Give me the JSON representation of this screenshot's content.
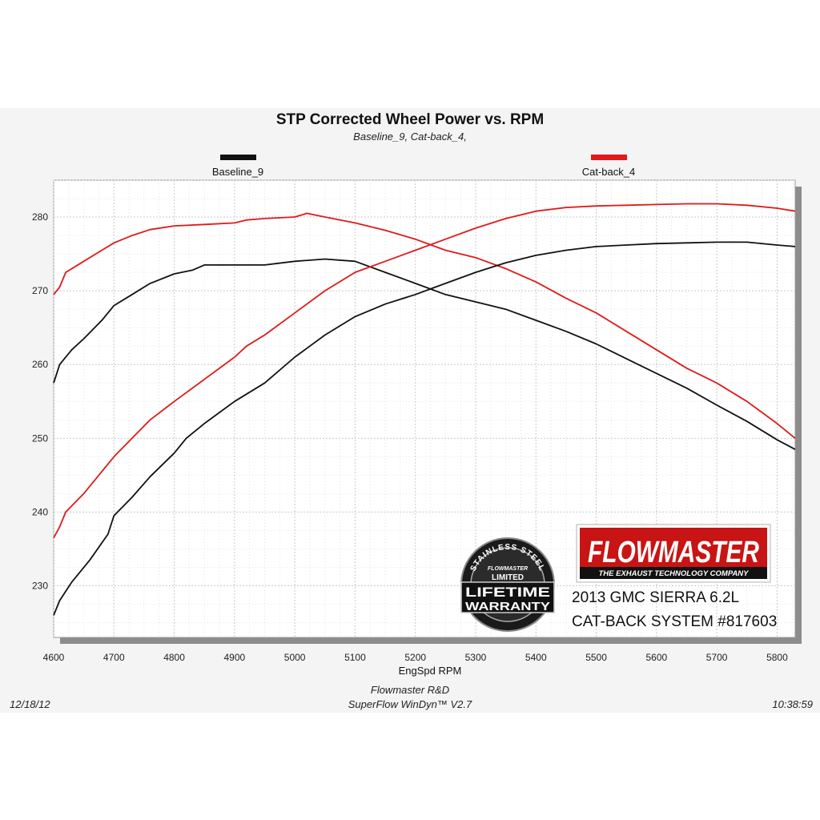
{
  "chart_data": {
    "type": "line",
    "title": "STP Corrected Wheel Power vs. RPM",
    "subtitle": "Baseline_9, Cat-back_4,",
    "xlabel": "EngSpd  RPM",
    "ylabel": "",
    "xlim": [
      4600,
      5830
    ],
    "ylim": [
      223,
      285
    ],
    "x_ticks": [
      4600,
      4700,
      4800,
      4900,
      5000,
      5100,
      5200,
      5300,
      5400,
      5500,
      5600,
      5700,
      5800
    ],
    "y_ticks": [
      230,
      240,
      250,
      260,
      270,
      280
    ],
    "grid": true,
    "legend": [
      {
        "name": "Baseline_9",
        "color": "#111111",
        "placement": "top-left"
      },
      {
        "name": "Cat-back_4",
        "color": "#e01919",
        "placement": "top-right"
      }
    ],
    "series": [
      {
        "name": "Baseline_9",
        "metric": "power",
        "color": "#111111",
        "x": [
          4600,
          4610,
          4630,
          4650,
          4680,
          4700,
          4730,
          4760,
          4800,
          4830,
          4850,
          4900,
          4950,
          5000,
          5050,
          5100,
          5150,
          5200,
          5250,
          5300,
          5350,
          5400,
          5450,
          5500,
          5550,
          5600,
          5650,
          5700,
          5750,
          5800,
          5830
        ],
        "y": [
          257.5,
          260.0,
          262.0,
          263.5,
          266.0,
          268.0,
          269.5,
          271.0,
          272.3,
          272.8,
          273.5,
          273.5,
          273.5,
          274.0,
          274.3,
          274.0,
          272.5,
          271.0,
          269.5,
          268.5,
          267.5,
          266.0,
          264.5,
          262.8,
          260.8,
          258.8,
          256.8,
          254.5,
          252.3,
          249.8,
          248.5
        ]
      },
      {
        "name": "Cat-back_4",
        "metric": "power",
        "color": "#e01919",
        "x": [
          4600,
          4610,
          4620,
          4650,
          4680,
          4700,
          4730,
          4760,
          4800,
          4850,
          4900,
          4920,
          4950,
          5000,
          5020,
          5050,
          5100,
          5150,
          5200,
          5250,
          5300,
          5350,
          5400,
          5450,
          5500,
          5550,
          5600,
          5650,
          5700,
          5750,
          5800,
          5830
        ],
        "y": [
          269.5,
          270.5,
          272.5,
          274.0,
          275.5,
          276.5,
          277.5,
          278.3,
          278.8,
          279.0,
          279.2,
          279.6,
          279.8,
          280.0,
          280.5,
          280.0,
          279.2,
          278.2,
          277.0,
          275.5,
          274.5,
          273.0,
          271.2,
          269.0,
          267.0,
          264.5,
          262.0,
          259.5,
          257.5,
          255.0,
          252.0,
          250.0
        ]
      },
      {
        "name": "Baseline_9",
        "metric": "torque",
        "color": "#111111",
        "x": [
          4600,
          4610,
          4630,
          4660,
          4690,
          4700,
          4730,
          4760,
          4800,
          4820,
          4850,
          4900,
          4950,
          5000,
          5050,
          5100,
          5150,
          5200,
          5250,
          5300,
          5350,
          5400,
          5450,
          5500,
          5550,
          5600,
          5650,
          5700,
          5750,
          5800,
          5830
        ],
        "y": [
          226.0,
          228.0,
          230.5,
          233.5,
          237.0,
          239.5,
          242.0,
          244.8,
          248.0,
          250.0,
          252.0,
          255.0,
          257.5,
          261.0,
          264.0,
          266.5,
          268.2,
          269.5,
          271.0,
          272.5,
          273.8,
          274.8,
          275.5,
          276.0,
          276.2,
          276.4,
          276.5,
          276.6,
          276.6,
          276.2,
          276.0
        ]
      },
      {
        "name": "Cat-back_4",
        "metric": "torque",
        "color": "#e01919",
        "x": [
          4600,
          4610,
          4620,
          4650,
          4680,
          4700,
          4730,
          4760,
          4800,
          4850,
          4900,
          4920,
          4950,
          5000,
          5050,
          5100,
          5150,
          5200,
          5250,
          5300,
          5350,
          5400,
          5450,
          5500,
          5550,
          5600,
          5650,
          5700,
          5750,
          5800,
          5830
        ],
        "y": [
          236.5,
          238.0,
          240.0,
          242.5,
          245.5,
          247.5,
          250.0,
          252.5,
          255.0,
          258.0,
          261.0,
          262.5,
          264.0,
          267.0,
          270.0,
          272.5,
          274.0,
          275.5,
          277.0,
          278.5,
          279.8,
          280.8,
          281.3,
          281.5,
          281.6,
          281.7,
          281.8,
          281.8,
          281.6,
          281.2,
          280.8
        ]
      }
    ]
  },
  "footer": {
    "date": "12/18/12",
    "lab": "Flowmaster R&D",
    "software": "SuperFlow WinDyn™ V2.7",
    "time": "10:38:59"
  },
  "branding": {
    "logo_name": "FLOWMASTER",
    "logo_tagline": "THE EXHAUST TECHNOLOGY COMPANY",
    "product_line1": "2013 GMC SIERRA 6.2L",
    "product_line2": "CAT-BACK SYSTEM #817603",
    "badge_arc": "STAINLESS STEEL",
    "badge_brand": "FLOWMASTER",
    "badge_limited": "LIMITED",
    "badge_line1": "LIFETIME",
    "badge_line2": "WARRANTY"
  },
  "colors": {
    "accent_red": "#e01919",
    "baseline_black": "#111111",
    "logo_bg": "#c81414"
  }
}
